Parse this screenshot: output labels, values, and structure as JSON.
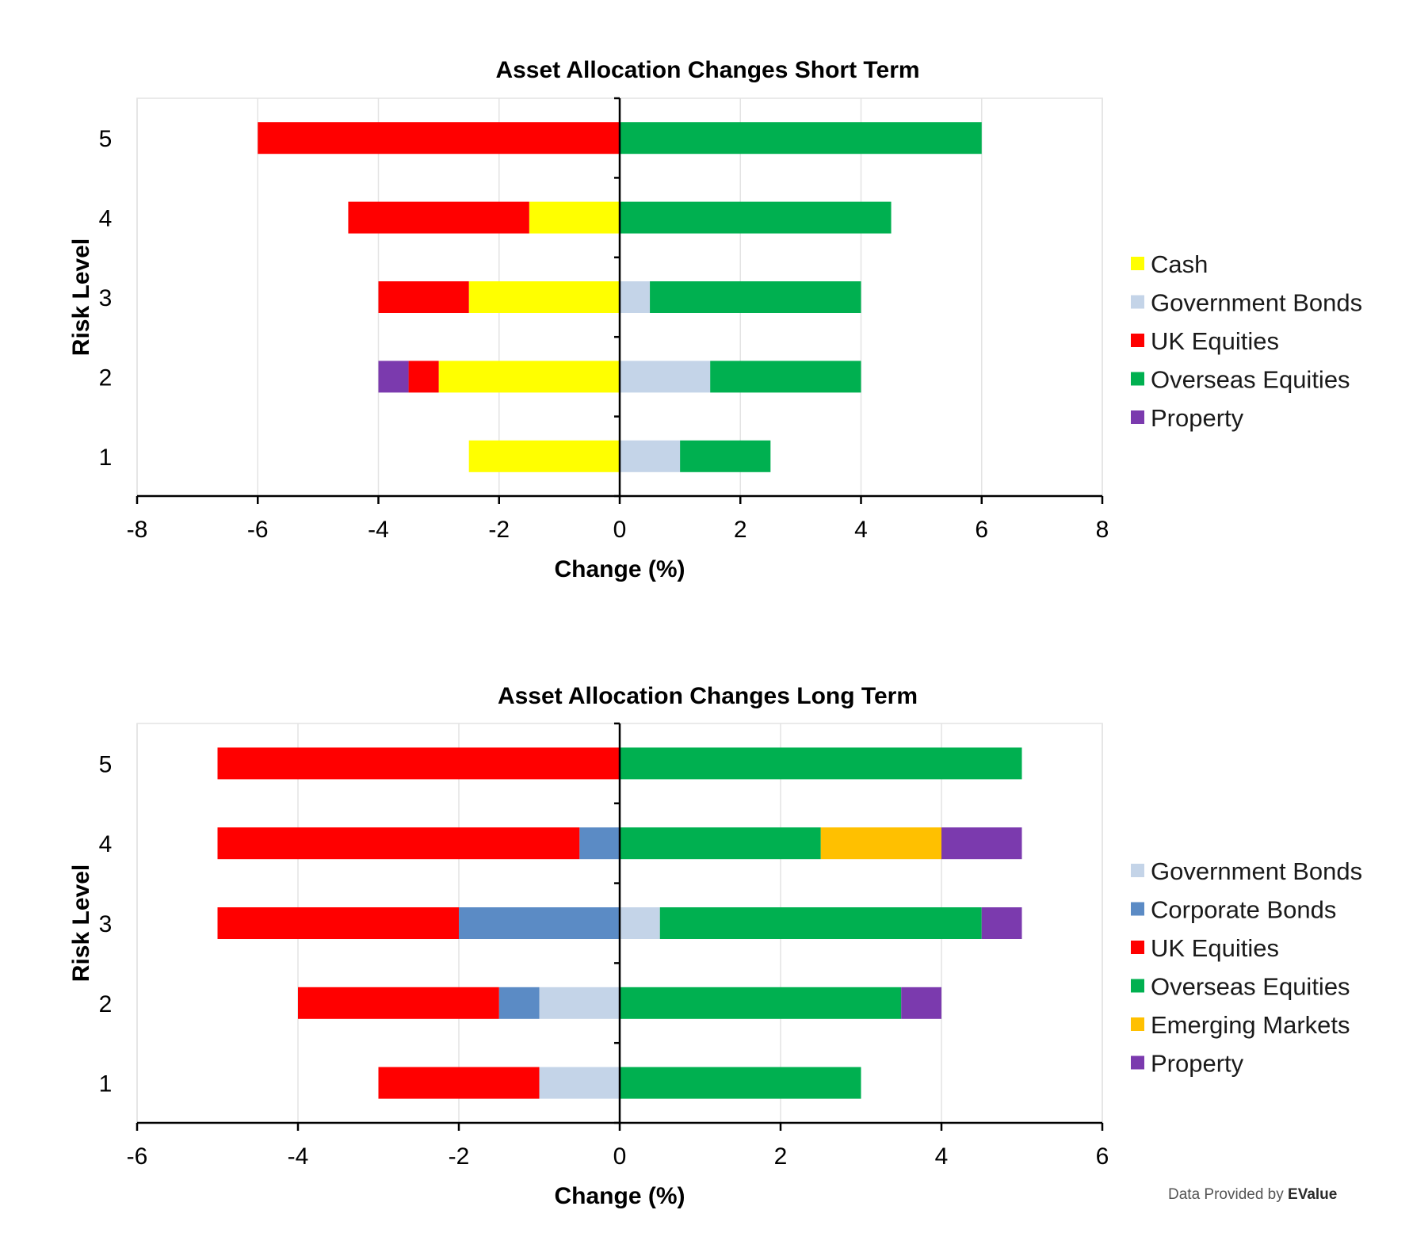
{
  "credit": {
    "prefix": "Data Provided by ",
    "brand": "EValue"
  },
  "chart_data": [
    {
      "type": "bar",
      "orientation": "horizontal",
      "stacked": true,
      "diverging": true,
      "title": "Asset Allocation Changes Short Term",
      "xlabel": "Change (%)",
      "ylabel": "Risk Level",
      "categories": [
        "1",
        "2",
        "3",
        "4",
        "5"
      ],
      "xlim": [
        -8,
        8
      ],
      "xticks": [
        "-8",
        "-6",
        "-4",
        "-2",
        "0",
        "2",
        "4",
        "6",
        "8"
      ],
      "grid": "vertical",
      "legend_position": "right",
      "series": [
        {
          "name": "Cash",
          "color": "#FFFF00",
          "values": [
            -2.5,
            -3,
            -2.5,
            -1.5,
            0
          ]
        },
        {
          "name": "Government Bonds",
          "color": "#C4D4E8",
          "values": [
            1,
            1.5,
            0.5,
            0,
            0
          ]
        },
        {
          "name": "UK Equities",
          "color": "#FF0000",
          "values": [
            0,
            -0.5,
            -1.5,
            -3,
            -6
          ]
        },
        {
          "name": "Overseas Equities",
          "color": "#00B050",
          "values": [
            1.5,
            2.5,
            3.5,
            4.5,
            6
          ]
        },
        {
          "name": "Property",
          "color": "#7B3AAE",
          "values": [
            0,
            -0.5,
            0,
            0,
            0
          ]
        }
      ]
    },
    {
      "type": "bar",
      "orientation": "horizontal",
      "stacked": true,
      "diverging": true,
      "title": "Asset Allocation Changes Long Term",
      "xlabel": "Change (%)",
      "ylabel": "Risk Level",
      "categories": [
        "1",
        "2",
        "3",
        "4",
        "5"
      ],
      "xlim": [
        -6,
        6
      ],
      "xticks": [
        "-6",
        "-4",
        "-2",
        "0",
        "2",
        "4",
        "6"
      ],
      "grid": "vertical",
      "legend_position": "right",
      "series": [
        {
          "name": "Government Bonds",
          "color": "#C4D4E8",
          "values": [
            -1,
            -1,
            0.5,
            0,
            0
          ]
        },
        {
          "name": "Corporate Bonds",
          "color": "#5B8BC5",
          "values": [
            0,
            -0.5,
            -2,
            -0.5,
            0
          ]
        },
        {
          "name": "UK Equities",
          "color": "#FF0000",
          "values": [
            -2,
            -2.5,
            -3,
            -4.5,
            -5
          ]
        },
        {
          "name": "Overseas Equities",
          "color": "#00B050",
          "values": [
            3,
            3.5,
            4,
            2.5,
            5
          ]
        },
        {
          "name": "Emerging Markets",
          "color": "#FFC000",
          "values": [
            0,
            0,
            0,
            1.5,
            0
          ]
        },
        {
          "name": "Property",
          "color": "#7B3AAE",
          "values": [
            0,
            0.5,
            0.5,
            1,
            0
          ]
        }
      ]
    }
  ]
}
